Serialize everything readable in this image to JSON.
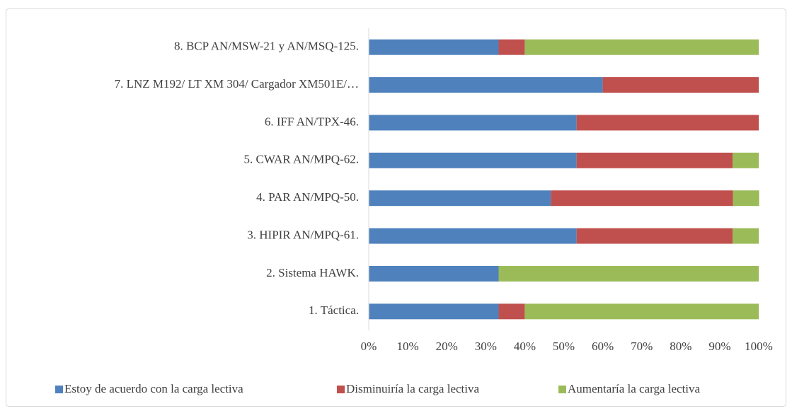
{
  "chart_data": {
    "type": "stacked_barh",
    "categories": [
      "1. Táctica.",
      "2. Sistema HAWK.",
      "3. HIPIR AN/MPQ-61.",
      "4. PAR AN/MPQ-50.",
      "5. CWAR AN/MPQ-62.",
      "6. IFF AN/TPX-46.",
      "7. LNZ M192/ LT XM 304/ Cargador XM501E/…",
      "8. BCP AN/MSW-21 y AN/MSQ-125."
    ],
    "series": [
      {
        "name": "Estoy de acuerdo con la carga lectiva",
        "color": "#4f81bd",
        "values": [
          33.3,
          33.3,
          53.3,
          46.7,
          53.3,
          53.3,
          60,
          33.3
        ]
      },
      {
        "name": "Disminuiría la carga lectiva",
        "color": "#c0504d",
        "values": [
          6.7,
          0,
          40,
          46.7,
          40,
          46.7,
          40,
          6.7
        ]
      },
      {
        "name": "Aumentaría la carga lectiva",
        "color": "#9bbb59",
        "values": [
          60,
          66.7,
          6.7,
          6.7,
          6.7,
          0,
          0,
          60
        ]
      }
    ],
    "xlim": [
      0,
      100
    ],
    "xticks": [
      {
        "value": 0,
        "label": "0%"
      },
      {
        "value": 10,
        "label": "10%"
      },
      {
        "value": 20,
        "label": "20%"
      },
      {
        "value": 30,
        "label": "30%"
      },
      {
        "value": 40,
        "label": "40%"
      },
      {
        "value": 50,
        "label": "50%"
      },
      {
        "value": 60,
        "label": "60%"
      },
      {
        "value": 70,
        "label": "70%"
      },
      {
        "value": 80,
        "label": "80%"
      },
      {
        "value": 90,
        "label": "90%"
      },
      {
        "value": 100,
        "label": "100%"
      }
    ],
    "legend": "bottom"
  }
}
